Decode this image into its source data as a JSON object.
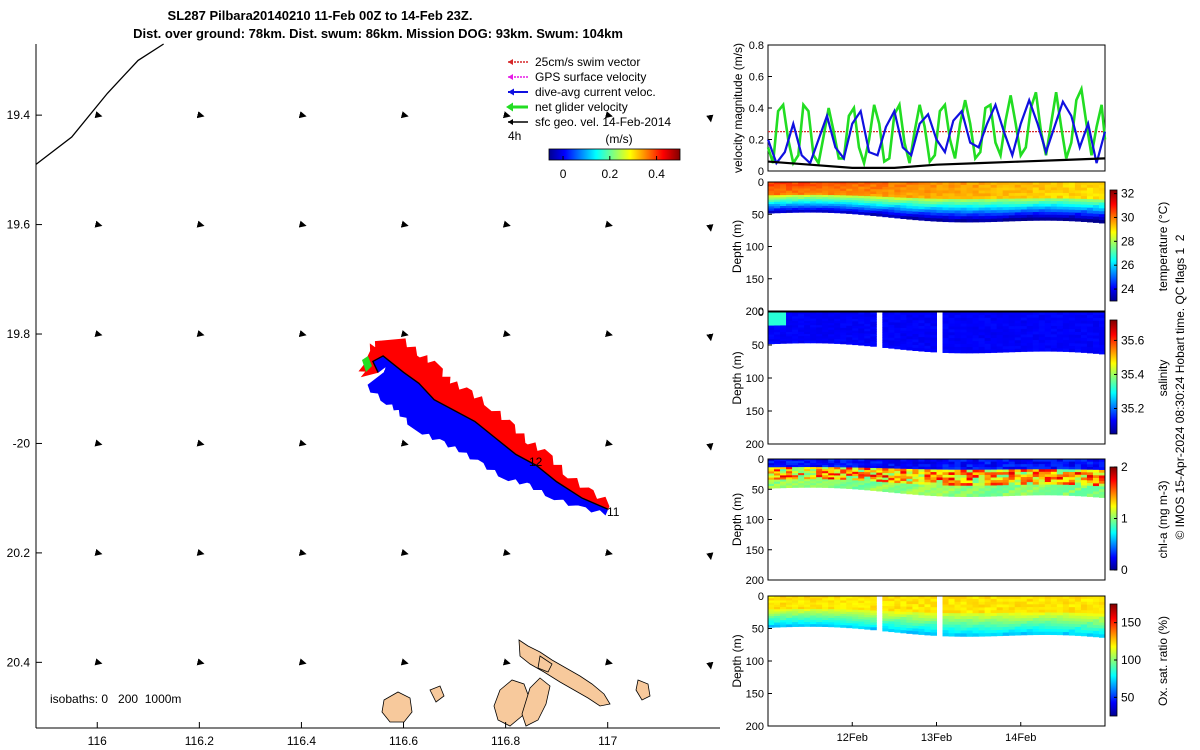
{
  "colors": {
    "swim_vector": "#d62728",
    "gps_velocity": "#e619e6",
    "dive_avg": "#1010e0",
    "net_velocity": "#22dd22",
    "sfc_geo": "#000000",
    "dive_swath": "#0000ff",
    "land": "#f7c99c"
  },
  "icons": [
    "parula-colorbar",
    "jet-colorbar",
    "vector-arrow"
  ],
  "chart_data": [
    {
      "type": "map",
      "title": "SL287 Pilbara20140210 11-Feb 00Z to 14-Feb 23Z.",
      "subtitle": "Dist. over ground: 78km. Dist. swum: 86km. Mission DOG: 93km. Swum: 104km",
      "xlim": [
        115.88,
        117.22
      ],
      "ylim": [
        -20.52,
        -19.27
      ],
      "x_ticks": [
        116,
        116.2,
        116.4,
        116.6,
        116.8,
        117
      ],
      "x_tick_labels": [
        "116",
        "116.2",
        "116.4",
        "116.6",
        "116.8",
        "117"
      ],
      "y_ticks": [
        -19.4,
        -19.6,
        -19.8,
        -20,
        -20.2,
        -20.4
      ],
      "y_tick_labels": [
        "19.4",
        "19.6",
        "19.8",
        "-20",
        "20.2",
        "20.4"
      ],
      "legend": {
        "placement": "top-right",
        "entries": [
          "25cm/s swim vector",
          "GPS surface velocity",
          "dive-avg current veloc.",
          "net glider velocity",
          "sfc geo. vel. 14-Feb-2014"
        ],
        "scale_label": "4h"
      },
      "colorbar": {
        "label": "(m/s)",
        "ticks": [
          0,
          0.2,
          0.4
        ],
        "tick_labels": [
          "0",
          "0.2",
          "0.4"
        ],
        "range": [
          -0.06,
          0.5
        ]
      },
      "track_day_labels": [
        "12",
        "11"
      ],
      "isobath_note": "isobaths: 0   200  1000m",
      "glider_track": [
        [
          117.0,
          -20.12
        ],
        [
          116.95,
          -20.1
        ],
        [
          116.9,
          -20.07
        ],
        [
          116.86,
          -20.04
        ],
        [
          116.82,
          -20.02
        ],
        [
          116.78,
          -19.99
        ],
        [
          116.74,
          -19.96
        ],
        [
          116.7,
          -19.94
        ],
        [
          116.66,
          -19.92
        ],
        [
          116.63,
          -19.89
        ],
        [
          116.6,
          -19.87
        ],
        [
          116.56,
          -19.84
        ],
        [
          116.54,
          -19.85
        ],
        [
          116.55,
          -19.87
        ]
      ],
      "isobath_0": [
        [
          115.88,
          -19.49
        ],
        [
          115.95,
          -19.44
        ],
        [
          116.02,
          -19.36
        ],
        [
          116.08,
          -19.3
        ],
        [
          116.13,
          -19.27
        ]
      ],
      "vector_grid_x": [
        116,
        116.2,
        116.4,
        116.6,
        116.8,
        117,
        117.2
      ],
      "vector_grid_y": [
        -19.4,
        -19.6,
        -19.8,
        -20,
        -20.2,
        -20.4
      ]
    },
    {
      "type": "line",
      "ylabel": "velocity magnitude (m/s)",
      "ylim": [
        0,
        0.8
      ],
      "y_ticks": [
        0,
        0.2,
        0.4,
        0.6,
        0.8
      ],
      "y_tick_labels": [
        "0",
        "0.2",
        "0.4",
        "0.6",
        "0.8"
      ],
      "xlim": [
        11.0,
        15.0
      ],
      "series": [
        {
          "color": "#d62728",
          "values_t": [
            11.0,
            15.0
          ],
          "values": [
            0.25,
            0.25
          ]
        },
        {
          "color": "#22dd22",
          "values_t": [
            11.0,
            11.06,
            11.12,
            11.18,
            11.24,
            11.3,
            11.36,
            11.42,
            11.48,
            11.54,
            11.6,
            11.66,
            11.72,
            11.78,
            11.84,
            11.9,
            11.96,
            12.02,
            12.08,
            12.14,
            12.2,
            12.26,
            12.32,
            12.38,
            12.44,
            12.5,
            12.56,
            12.62,
            12.68,
            12.74,
            12.8,
            12.86,
            12.92,
            12.98,
            13.04,
            13.1,
            13.16,
            13.22,
            13.28,
            13.34,
            13.4,
            13.46,
            13.52,
            13.58,
            13.64,
            13.7,
            13.76,
            13.82,
            13.88,
            13.94,
            14.0,
            14.06,
            14.12,
            14.18,
            14.24,
            14.3,
            14.36,
            14.42,
            14.48,
            14.54,
            14.6,
            14.66,
            14.72,
            14.78,
            14.84,
            14.9,
            14.96,
            15.0
          ],
          "values": [
            0.15,
            0.05,
            0.38,
            0.42,
            0.2,
            0.05,
            0.1,
            0.42,
            0.38,
            0.1,
            0.05,
            0.22,
            0.4,
            0.25,
            0.08,
            0.08,
            0.35,
            0.4,
            0.15,
            0.05,
            0.2,
            0.42,
            0.3,
            0.06,
            0.08,
            0.36,
            0.42,
            0.18,
            0.05,
            0.25,
            0.42,
            0.28,
            0.06,
            0.1,
            0.38,
            0.42,
            0.2,
            0.08,
            0.3,
            0.45,
            0.3,
            0.08,
            0.12,
            0.4,
            0.42,
            0.18,
            0.1,
            0.32,
            0.48,
            0.3,
            0.1,
            0.15,
            0.4,
            0.5,
            0.25,
            0.1,
            0.3,
            0.5,
            0.28,
            0.08,
            0.18,
            0.45,
            0.52,
            0.3,
            0.1,
            0.28,
            0.42,
            0.2
          ]
        },
        {
          "color": "#1010e0",
          "values_t": [
            11.0,
            11.1,
            11.2,
            11.3,
            11.4,
            11.5,
            11.6,
            11.7,
            11.8,
            11.9,
            12.0,
            12.1,
            12.2,
            12.3,
            12.4,
            12.5,
            12.6,
            12.7,
            12.8,
            12.9,
            13.0,
            13.1,
            13.2,
            13.3,
            13.4,
            13.5,
            13.6,
            13.7,
            13.8,
            13.9,
            14.0,
            14.1,
            14.2,
            14.3,
            14.4,
            14.5,
            14.6,
            14.7,
            14.8,
            14.9,
            15.0
          ],
          "values": [
            0.2,
            0.05,
            0.12,
            0.3,
            0.1,
            0.05,
            0.2,
            0.35,
            0.15,
            0.08,
            0.3,
            0.38,
            0.12,
            0.1,
            0.28,
            0.38,
            0.15,
            0.1,
            0.3,
            0.36,
            0.2,
            0.12,
            0.32,
            0.38,
            0.18,
            0.15,
            0.3,
            0.42,
            0.25,
            0.1,
            0.3,
            0.45,
            0.3,
            0.12,
            0.28,
            0.44,
            0.35,
            0.15,
            0.3,
            0.05,
            0.25
          ]
        },
        {
          "color": "#000000",
          "values_t": [
            11.0,
            11.5,
            12.0,
            12.5,
            13.0,
            13.5,
            14.0,
            14.5,
            15.0
          ],
          "values": [
            0.06,
            0.04,
            0.02,
            0.02,
            0.04,
            0.05,
            0.06,
            0.07,
            0.08
          ]
        }
      ]
    },
    {
      "type": "heatmap",
      "ylabel": "Depth (m)",
      "cbar_label": "temperature (°C)",
      "ylim": [
        0,
        200
      ],
      "y_ticks": [
        0,
        50,
        100,
        150,
        200
      ],
      "y_tick_labels": [
        "0",
        "50",
        "100",
        "150",
        "200"
      ],
      "cbar_ticks": [
        24,
        26,
        28,
        30,
        32
      ],
      "cbar_tick_labels": [
        "24",
        "26",
        "28",
        "30",
        "32"
      ],
      "cbar_range": [
        23.0,
        32.3
      ]
    },
    {
      "type": "heatmap",
      "ylabel": "Depth (m)",
      "cbar_label": "salinity",
      "ylim": [
        0,
        200
      ],
      "y_ticks": [
        0,
        50,
        100,
        150,
        200
      ],
      "y_tick_labels": [
        "0",
        "50",
        "100",
        "150",
        "200"
      ],
      "cbar_ticks": [
        35.2,
        35.4,
        35.6
      ],
      "cbar_tick_labels": [
        "35.2",
        "35.4",
        "35.6"
      ],
      "cbar_range": [
        35.05,
        35.72
      ]
    },
    {
      "type": "heatmap",
      "ylabel": "Depth (m)",
      "cbar_label": "chl-a (mg m-3)",
      "ylim": [
        0,
        200
      ],
      "y_ticks": [
        0,
        50,
        100,
        150,
        200
      ],
      "y_tick_labels": [
        "0",
        "50",
        "100",
        "150",
        "200"
      ],
      "cbar_ticks": [
        0,
        1,
        2
      ],
      "cbar_tick_labels": [
        "0",
        "1",
        "2"
      ],
      "cbar_range": [
        0,
        2
      ]
    },
    {
      "type": "heatmap",
      "ylabel": "Depth (m)",
      "cbar_label": "Ox. sat. ratio (%)",
      "ylim": [
        0,
        200
      ],
      "y_ticks": [
        0,
        50,
        100,
        150,
        200
      ],
      "y_tick_labels": [
        "0",
        "50",
        "100",
        "150",
        "200"
      ],
      "cbar_ticks": [
        50,
        100,
        150
      ],
      "cbar_tick_labels": [
        "50",
        "100",
        "150"
      ],
      "cbar_range": [
        25,
        175
      ],
      "x_ticks": [
        12,
        13,
        14
      ],
      "x_tick_labels": [
        "12Feb",
        "13Feb",
        "14Feb"
      ]
    }
  ],
  "footer_note": "© IMOS 15-Apr-2024 08:30:24 Hobart time. QC flags 1  2"
}
